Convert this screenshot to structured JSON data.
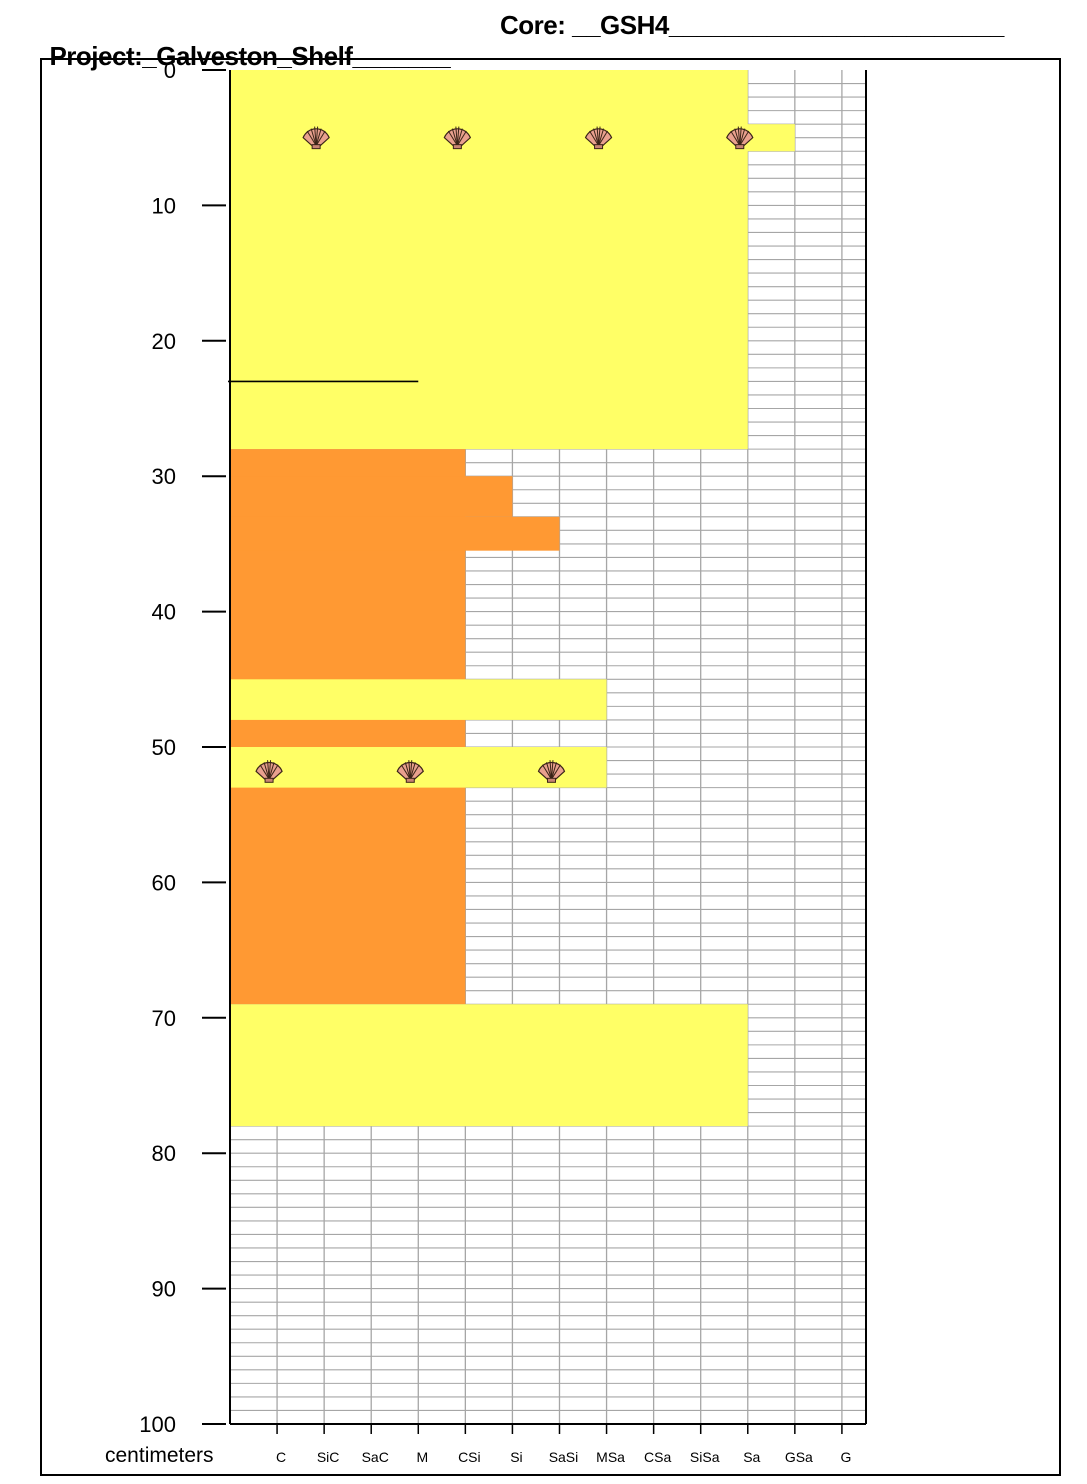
{
  "header": {
    "project_text": "Project:_Galveston_Shelf_______",
    "core_text": "Core: __GSH4________________________"
  },
  "axis": {
    "unit_label": "centimeters",
    "depth_range": [
      0,
      100
    ],
    "depth_ticks": [
      0,
      10,
      20,
      30,
      40,
      50,
      60,
      70,
      80,
      90,
      100
    ]
  },
  "grain_columns": [
    "C",
    "SiC",
    "SaC",
    "M",
    "CSi",
    "Si",
    "SaSi",
    "MSa",
    "CSa",
    "SiSa",
    "Sa",
    "GSa",
    "G"
  ],
  "chart_data": {
    "type": "core-log",
    "ylabel": "centimeters",
    "ylim": [
      0,
      100
    ],
    "x_categories": [
      "C",
      "SiC",
      "SaC",
      "M",
      "CSi",
      "Si",
      "SaSi",
      "MSa",
      "CSa",
      "SiSa",
      "Sa",
      "GSa",
      "G"
    ],
    "colors": {
      "sand": "#ffff66",
      "mud": "#ff9933",
      "grid": "#a6a6a6"
    },
    "units": [
      {
        "top": 0,
        "bottom": 28,
        "grain": "Sa",
        "color": "#ffff66"
      },
      {
        "top": 4,
        "bottom": 6,
        "grain": "GSa",
        "color": "#ffff66"
      },
      {
        "top": 28,
        "bottom": 69,
        "grain": "CSi",
        "color": "#ff9933"
      },
      {
        "top": 30,
        "bottom": 33,
        "grain": "Si",
        "color": "#ff9933"
      },
      {
        "top": 33,
        "bottom": 35.5,
        "grain": "SaSi",
        "color": "#ff9933"
      },
      {
        "top": 45,
        "bottom": 48,
        "grain": "MSa",
        "color": "#ffff66"
      },
      {
        "top": 50,
        "bottom": 53,
        "grain": "MSa",
        "color": "#ffff66"
      },
      {
        "top": 69,
        "bottom": 78,
        "grain": "Sa",
        "color": "#ffff66"
      }
    ],
    "contacts": [
      {
        "depth": 23,
        "from": "C",
        "to": "M"
      }
    ],
    "shell_symbols": [
      {
        "depth": 4.7,
        "grain": "SiC"
      },
      {
        "depth": 4.7,
        "grain": "CSi"
      },
      {
        "depth": 4.7,
        "grain": "MSa"
      },
      {
        "depth": 4.7,
        "grain": "Sa"
      },
      {
        "depth": 51.5,
        "grain": "C"
      },
      {
        "depth": 51.5,
        "grain": "M"
      },
      {
        "depth": 51.5,
        "grain": "SaSi"
      }
    ]
  }
}
